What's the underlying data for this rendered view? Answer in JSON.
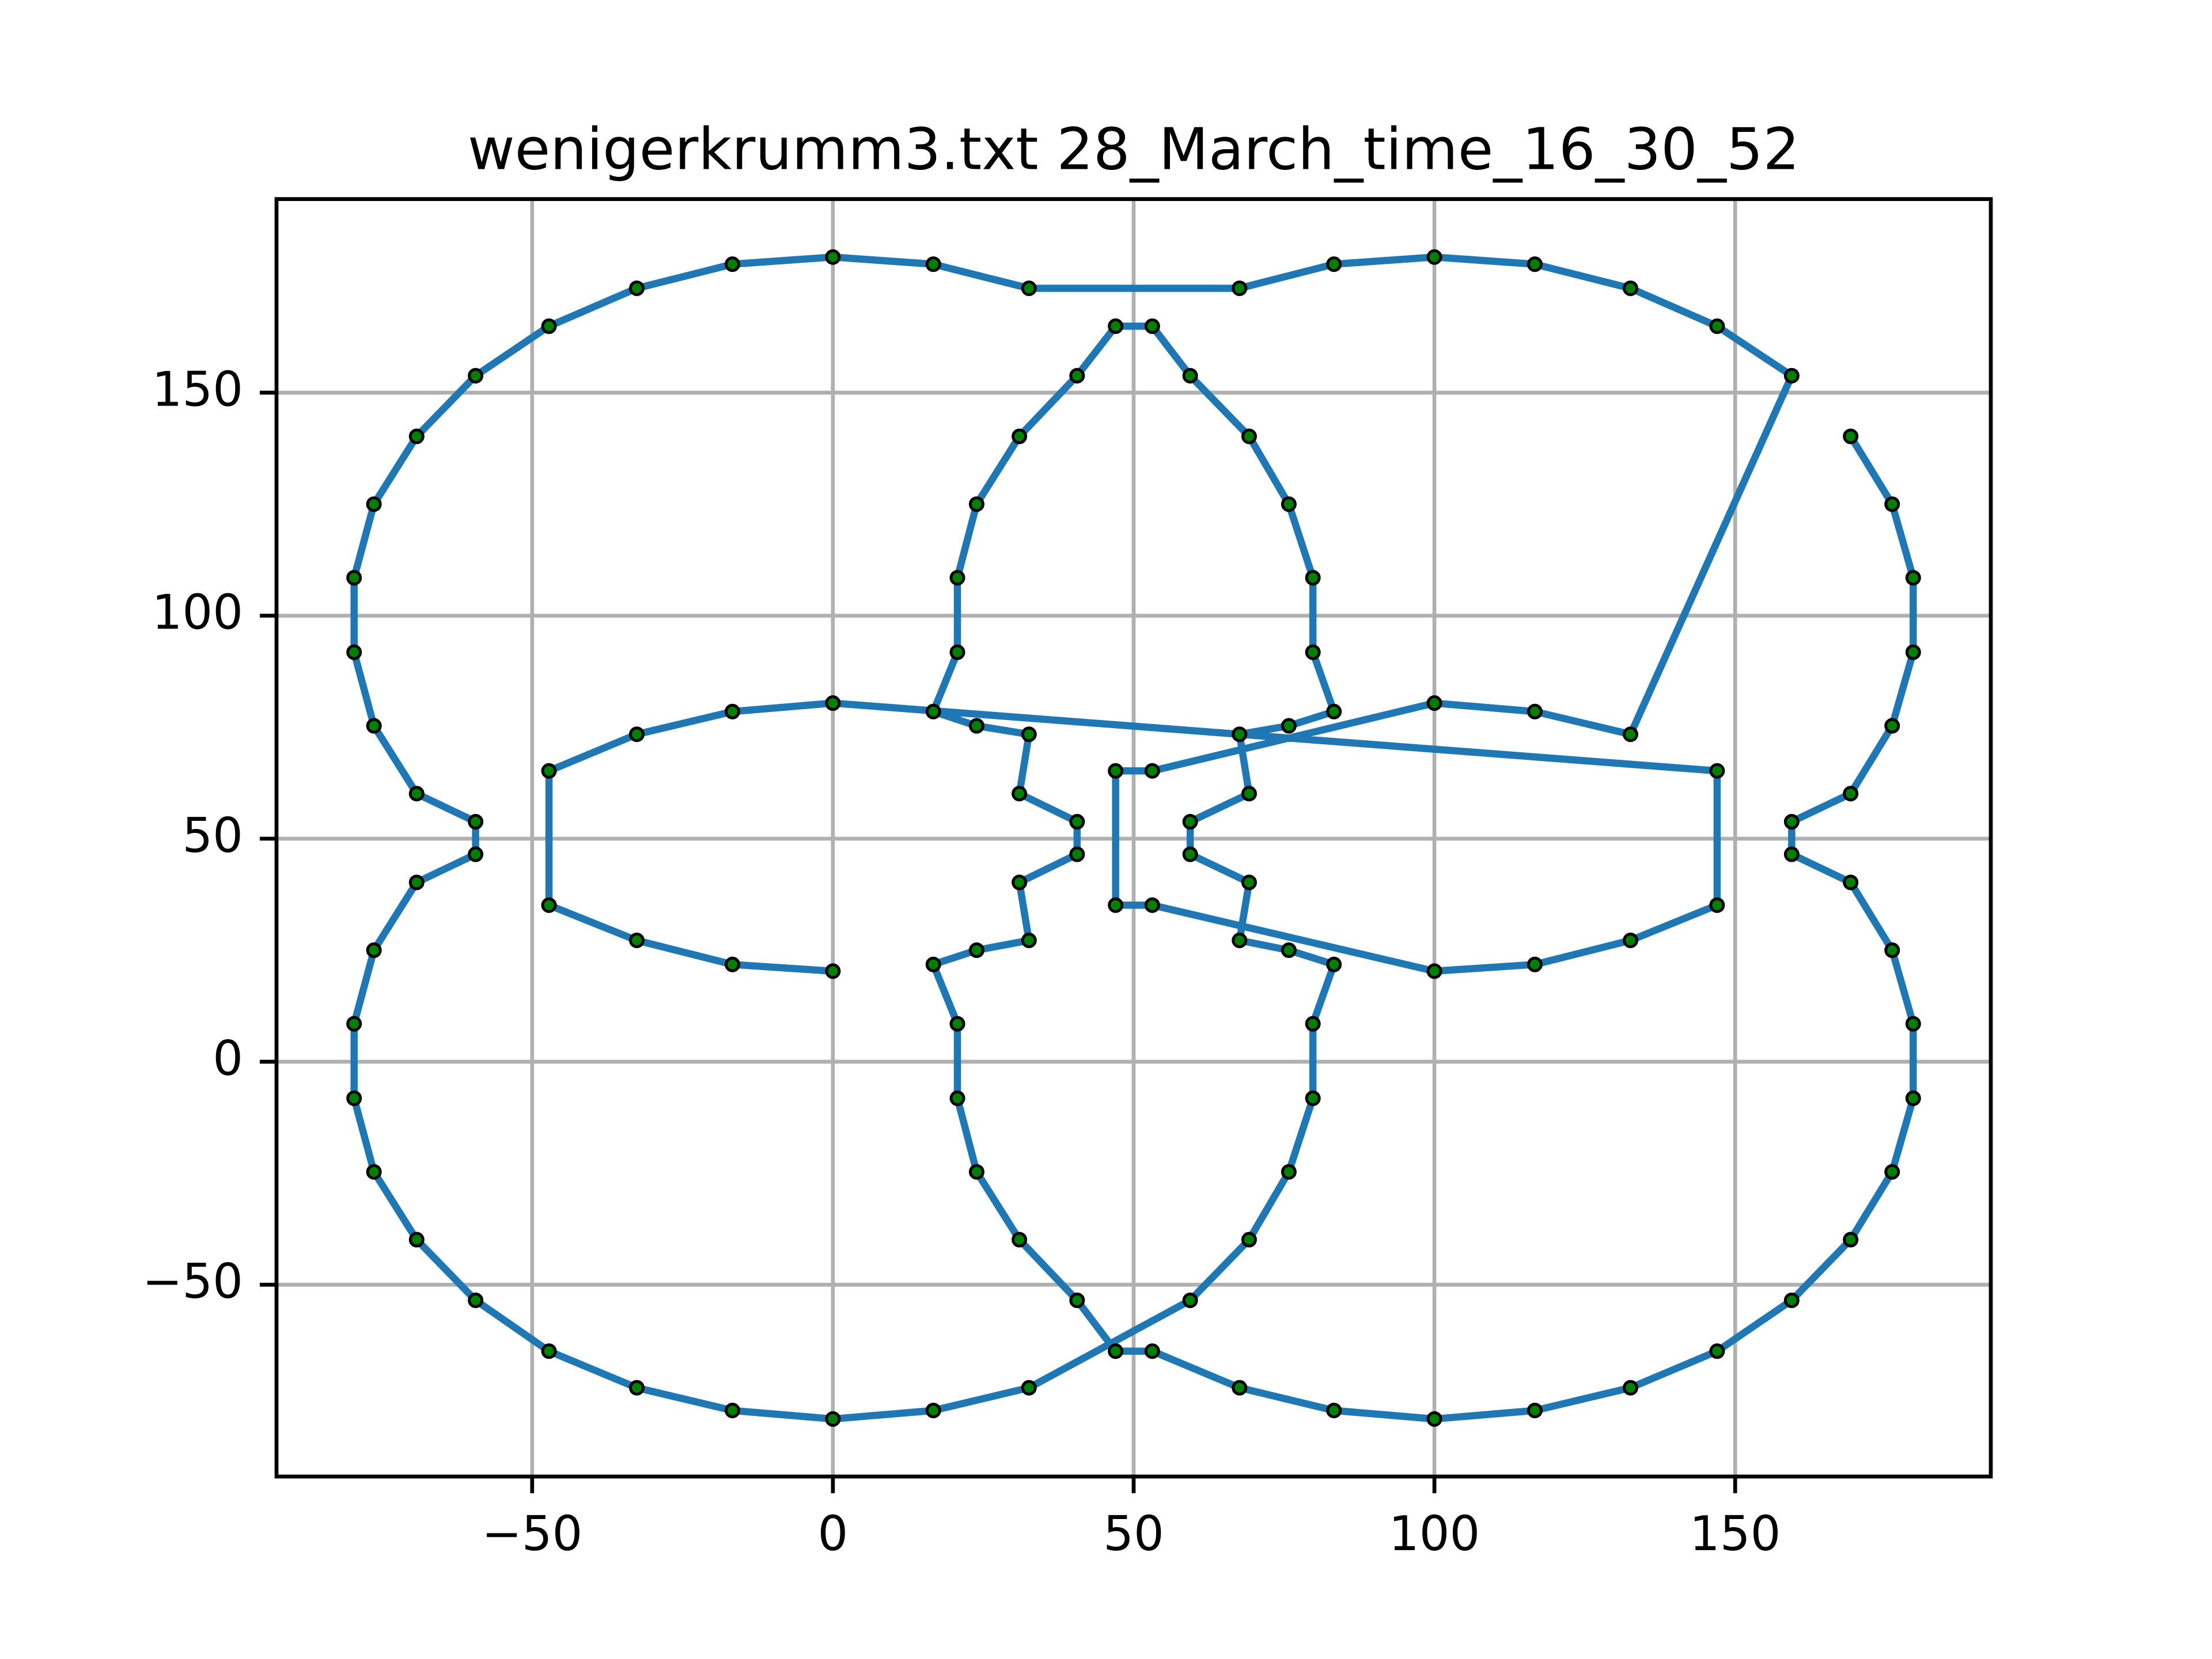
{
  "chart_data": {
    "type": "line",
    "title": "wenigerkrumm3.txt 28_March_time_16_30_52",
    "x": [
      169.2,
      176.1,
      179.6,
      179.6,
      176.1,
      169.2,
      159.4,
      159.4,
      169.2,
      176.1,
      179.6,
      179.6,
      176.1,
      169.2,
      159.4,
      147.0,
      132.6,
      116.7,
      100,
      83.3,
      67.6,
      53.1,
      47.0,
      40.6,
      31.0,
      23.9,
      20.7,
      20.7,
      16.7,
      23.9,
      32.6,
      31.0,
      40.6,
      40.6,
      31.0,
      32.6,
      23.9,
      16.7,
      20.7,
      20.7,
      23.9,
      31.0,
      40.6,
      47.0,
      53.1,
      59.4,
      69.2,
      75.8,
      79.8,
      79.8,
      83.3,
      75.8,
      67.6,
      69.2,
      59.4,
      59.4,
      69.2,
      67.6,
      75.8,
      83.3,
      79.8,
      79.8,
      75.8,
      69.2,
      59.4,
      32.6,
      16.7,
      0,
      -16.7,
      -32.6,
      -47.2,
      -59.4,
      -69.2,
      -76.3,
      -79.6,
      -79.6,
      -76.3,
      -69.2,
      -59.4,
      -59.4,
      -69.2,
      -76.3,
      -79.6,
      -79.6,
      -76.3,
      -69.2,
      -59.4,
      -47.2,
      -32.6,
      -16.7,
      0,
      16.7,
      32.6,
      67.6,
      83.3,
      100,
      116.7,
      132.6,
      147.0,
      159.4,
      132.6,
      116.7,
      100,
      53.1,
      47.0,
      47.0,
      53.1,
      100,
      116.7,
      132.6,
      147.0,
      147.0,
      0,
      -16.7,
      -32.6,
      -47.2,
      -47.2,
      -32.6,
      -16.7,
      0
    ],
    "values": [
      140.2,
      125.0,
      108.5,
      91.8,
      75.3,
      60.1,
      53.8,
      46.5,
      40.2,
      25.0,
      8.5,
      -8.2,
      -24.7,
      -39.9,
      -53.5,
      -64.9,
      -73.1,
      -78.2,
      -80.1,
      -78.2,
      -73.1,
      -64.9,
      -64.9,
      -53.5,
      -39.9,
      -24.7,
      -8.2,
      8.5,
      21.8,
      25.0,
      27.2,
      40.2,
      46.5,
      53.8,
      60.1,
      73.4,
      75.3,
      78.5,
      91.8,
      108.5,
      125.0,
      140.2,
      153.8,
      164.9,
      164.9,
      153.8,
      140.2,
      125.0,
      108.5,
      91.8,
      78.5,
      75.3,
      73.4,
      60.1,
      53.8,
      46.5,
      40.2,
      27.2,
      25.0,
      21.8,
      8.5,
      -8.2,
      -24.7,
      -39.9,
      -53.5,
      -73.1,
      -78.2,
      -80.1,
      -78.2,
      -73.1,
      -64.9,
      -53.5,
      -39.9,
      -24.7,
      -8.2,
      8.5,
      25.0,
      40.2,
      46.5,
      53.8,
      60.1,
      75.3,
      91.8,
      108.5,
      125.0,
      140.2,
      153.8,
      164.9,
      173.4,
      178.8,
      180.4,
      178.8,
      173.4,
      173.4,
      178.8,
      180.4,
      178.8,
      173.4,
      164.9,
      153.8,
      73.4,
      78.5,
      80.4,
      65.2,
      65.2,
      35.1,
      35.1,
      20.3,
      21.8,
      27.2,
      35.1,
      65.2,
      80.4,
      78.5,
      73.4,
      65.2,
      35.1,
      27.2,
      21.8,
      20.3
    ],
    "color": "#1f77b4",
    "marker_color": "#008000",
    "xlim": [
      -92.5,
      192.5
    ],
    "ylim": [
      -93,
      193.4
    ],
    "xticks": [
      {
        "value": -50,
        "label": "−50"
      },
      0,
      50,
      100,
      150
    ],
    "yticks": [
      {
        "value": -50,
        "label": "−50"
      },
      0,
      50,
      100,
      150
    ],
    "grid": true
  }
}
